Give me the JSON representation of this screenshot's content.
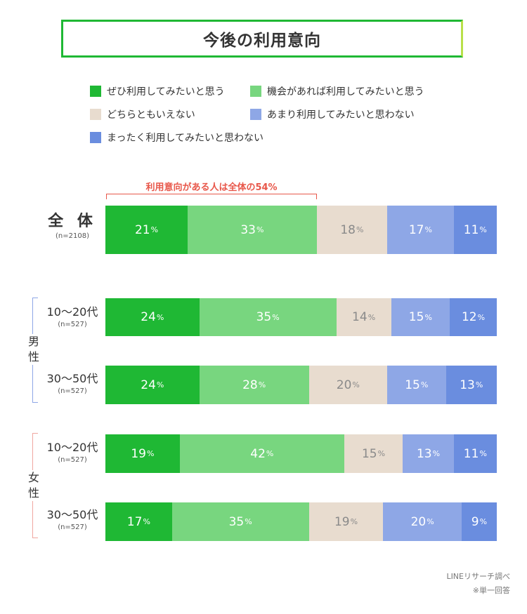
{
  "title": "今後の利用意向",
  "legend": [
    {
      "label": "ぜひ利用してみたいと思う",
      "color": "#1fb834"
    },
    {
      "label": "機会があれば利用してみたいと思う",
      "color": "#78d67f"
    },
    {
      "label": "どちらともいえない",
      "color": "#e8dccf"
    },
    {
      "label": "あまり利用してみたいと思わない",
      "color": "#8ea7e6"
    },
    {
      "label": "まったく利用してみたいと思わない",
      "color": "#6a8ddf"
    }
  ],
  "note": "利用意向がある人は全体の54%",
  "note_color": "#e8574a",
  "groups": {
    "male": {
      "label": "男\n性",
      "color": "#8ea7e6"
    },
    "female": {
      "label": "女\n性",
      "color": "#f0a7a0"
    }
  },
  "rows": [
    {
      "label": "全 体",
      "n": "(n=2108)"
    },
    {
      "label": "10〜20代",
      "n": "(n=527)"
    },
    {
      "label": "30〜50代",
      "n": "(n=527)"
    },
    {
      "label": "10〜20代",
      "n": "(n=527)"
    },
    {
      "label": "30〜50代",
      "n": "(n=527)"
    }
  ],
  "percent_sign": "%",
  "source": {
    "line1": "LINEリサーチ調べ",
    "line2": "※単一回答"
  },
  "chart_data": {
    "type": "bar",
    "orientation": "horizontal-stacked-100",
    "categories": [
      "全体",
      "男性 10〜20代",
      "男性 30〜50代",
      "女性 10〜20代",
      "女性 30〜50代"
    ],
    "series": [
      {
        "name": "ぜひ利用してみたいと思う",
        "values": [
          21,
          24,
          24,
          19,
          17
        ]
      },
      {
        "name": "機会があれば利用してみたいと思う",
        "values": [
          33,
          35,
          28,
          42,
          35
        ]
      },
      {
        "name": "どちらともいえない",
        "values": [
          18,
          14,
          20,
          15,
          19
        ]
      },
      {
        "name": "あまり利用してみたいと思わない",
        "values": [
          17,
          15,
          15,
          13,
          20
        ]
      },
      {
        "name": "まったく利用してみたいと思わない",
        "values": [
          11,
          12,
          13,
          11,
          9
        ]
      }
    ],
    "title": "今後の利用意向",
    "value_unit": "%",
    "legend_position": "top"
  }
}
